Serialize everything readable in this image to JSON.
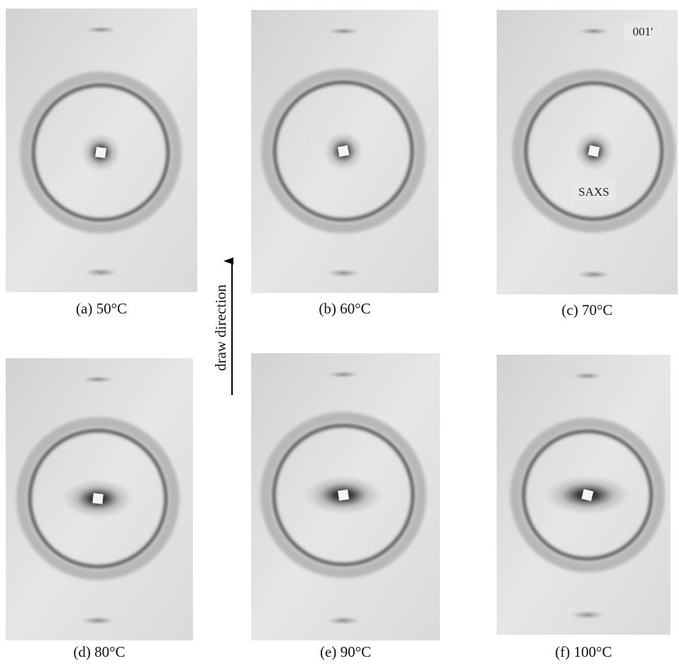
{
  "panels": [
    {
      "caption": "(a) 50°C"
    },
    {
      "caption": "(b) 60°C"
    },
    {
      "caption": "(c) 70°C"
    },
    {
      "caption": "(d) 80°C"
    },
    {
      "caption": "(e) 90°C"
    },
    {
      "caption": "(f) 100°C"
    }
  ],
  "annotations": {
    "reflection": "001'",
    "saxs": "SAXS"
  },
  "arrow_label": "draw direction"
}
